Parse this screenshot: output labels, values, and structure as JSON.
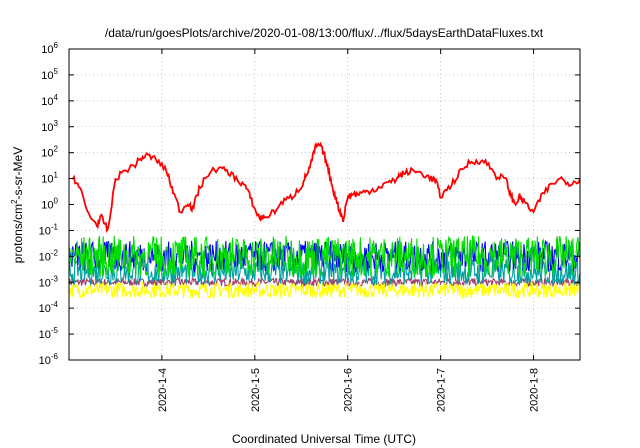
{
  "chart_data": {
    "type": "line",
    "title": "/data/run/goesPlots/archive/2020-01-08/13:00/flux/../flux/5daysEarthDataFluxes.txt",
    "xlabel": "Coordinated Universal Time (UTC)",
    "ylabel": "protons/cm²-s-sr-MeV",
    "y_scale": "log",
    "ylim": [
      1e-06,
      1000000.0
    ],
    "y_tick_exponents": [
      -6,
      -5,
      -4,
      -3,
      -2,
      -1,
      0,
      1,
      2,
      3,
      4,
      5,
      6
    ],
    "x_range_days": [
      "2020-01-03 01:00",
      "2020-01-08 13:00"
    ],
    "x_ticks": [
      {
        "label": "2020-1-4",
        "day": 1
      },
      {
        "label": "2020-1-5",
        "day": 2
      },
      {
        "label": "2020-1-6",
        "day": 3
      },
      {
        "label": "2020-1-7",
        "day": 4
      },
      {
        "label": "2020-1-8",
        "day": 5
      }
    ],
    "grid": true,
    "legend": "none",
    "series": [
      {
        "color": "#ff0000",
        "style": "smooth",
        "x": [
          0.04,
          0.12,
          0.2,
          0.3,
          0.35,
          0.42,
          0.5,
          0.6,
          0.7,
          0.78,
          0.85,
          0.95,
          1.05,
          1.12,
          1.2,
          1.28,
          1.33,
          1.4,
          1.5,
          1.6,
          1.7,
          1.8,
          1.9,
          1.95,
          2.0,
          2.05,
          2.1,
          2.2,
          2.3,
          2.4,
          2.5,
          2.55,
          2.6,
          2.65,
          2.7,
          2.75,
          2.8,
          2.85,
          2.9,
          2.95,
          3.0,
          3.05,
          3.12,
          3.2,
          3.3,
          3.4,
          3.5,
          3.55,
          3.6,
          3.7,
          3.8,
          3.9,
          3.95,
          4.0,
          4.1,
          4.2,
          4.3,
          4.4,
          4.5,
          4.6,
          4.7,
          4.75,
          4.8,
          4.85,
          4.9,
          5.0,
          5.1,
          5.2,
          5.3,
          5.4,
          5.5
        ],
        "y_exp": [
          1.1,
          0.6,
          -0.3,
          -0.8,
          -0.5,
          -1.0,
          1.0,
          1.3,
          1.5,
          1.8,
          1.9,
          1.7,
          1.3,
          0.5,
          -0.3,
          0.1,
          -0.2,
          0.6,
          1.2,
          1.4,
          1.3,
          1.0,
          0.7,
          0.3,
          -0.2,
          -0.5,
          -0.5,
          -0.3,
          0.1,
          0.3,
          0.7,
          1.1,
          1.5,
          2.2,
          2.3,
          1.9,
          1.2,
          0.5,
          -0.1,
          -0.6,
          0.3,
          0.4,
          0.4,
          0.5,
          0.6,
          0.8,
          0.9,
          1.1,
          1.2,
          1.3,
          1.2,
          1.0,
          0.9,
          0.3,
          0.7,
          1.2,
          1.6,
          1.7,
          1.6,
          1.1,
          1.0,
          0.4,
          0.0,
          0.3,
          0.1,
          -0.3,
          0.4,
          0.8,
          1.0,
          0.8,
          1.0
        ]
      },
      {
        "color": "#00dd00",
        "style": "noisy",
        "center_exp": -2.0,
        "spread_exp": 0.8
      },
      {
        "color": "#0000ff",
        "style": "noisy",
        "center_exp": -2.0,
        "spread_exp": 0.6
      },
      {
        "color": "#00a0a0",
        "style": "noisy",
        "center_exp": -2.6,
        "spread_exp": 0.5
      },
      {
        "color": "#ffff00",
        "style": "noisy",
        "center_exp": -3.3,
        "spread_exp": 0.3
      },
      {
        "color": "#a0406a",
        "style": "noisy",
        "center_exp": -3.0,
        "spread_exp": 0.15
      }
    ]
  }
}
